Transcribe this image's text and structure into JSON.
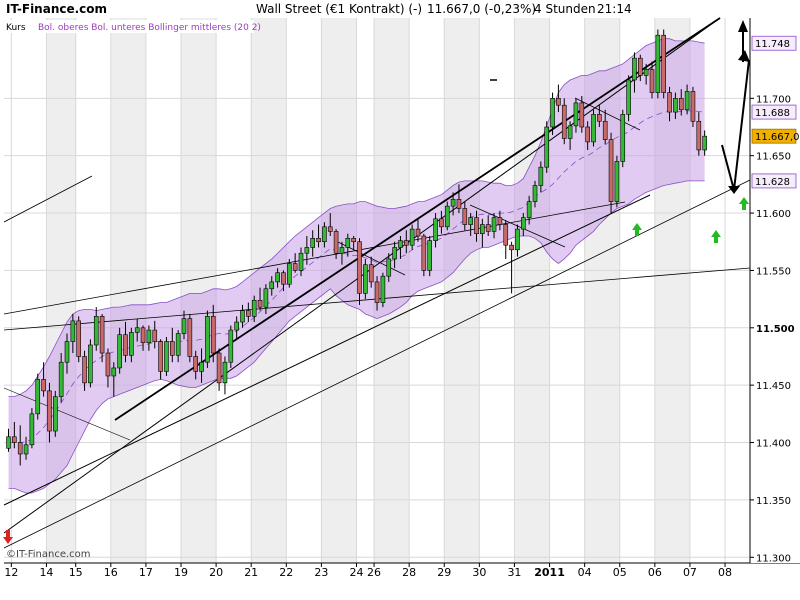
{
  "header": {
    "brand": "IT-Finance.com",
    "title": "Wall Street (€1 Kontrakt) (-)",
    "quote": "11.667,0 (-0,23%)",
    "interval": "4 Stunden",
    "time": "21:14"
  },
  "legend": {
    "kurs": "Kurs",
    "bollinger": "Bol. oberes Bol. unteres Bollinger mittleres (20 2)"
  },
  "watermark": "©IT-Finance.com",
  "colors": {
    "up": "#35b835",
    "down": "#c86a6a",
    "band": "#c9a0e8",
    "band_edge": "#8a4fc8",
    "grid": "#d8d8d8",
    "alt_col": "#eeeeee",
    "arrow_up": "#22bb22",
    "arrow_down": "#dd2222",
    "last_bg": "#f0b000"
  },
  "chart_data": {
    "type": "candlestick",
    "title": "Wall Street (€1 Kontrakt) (-)",
    "y_axis": {
      "ylim": [
        11295,
        11770
      ],
      "ticks": [
        {
          "v": 11300,
          "label": "11.300",
          "bold": false
        },
        {
          "v": 11350,
          "label": "11.350",
          "bold": false
        },
        {
          "v": 11400,
          "label": "11.400",
          "bold": false
        },
        {
          "v": 11450,
          "label": "11.450",
          "bold": false
        },
        {
          "v": 11500,
          "label": "11.500",
          "bold": true
        },
        {
          "v": 11550,
          "label": "11.550",
          "bold": false
        },
        {
          "v": 11600,
          "label": "11.600",
          "bold": false
        },
        {
          "v": 11650,
          "label": "11.650",
          "bold": false
        },
        {
          "v": 11700,
          "label": "11.700",
          "bold": false
        }
      ]
    },
    "x_axis": {
      "bars": 120,
      "labels": [
        {
          "i": 1,
          "label": "12",
          "bold": false
        },
        {
          "i": 7,
          "label": "14",
          "bold": false
        },
        {
          "i": 12,
          "label": "15",
          "bold": false
        },
        {
          "i": 18,
          "label": "16",
          "bold": false
        },
        {
          "i": 24,
          "label": "17",
          "bold": false
        },
        {
          "i": 30,
          "label": "19",
          "bold": false
        },
        {
          "i": 36,
          "label": "20",
          "bold": false
        },
        {
          "i": 42,
          "label": "21",
          "bold": false
        },
        {
          "i": 48,
          "label": "22",
          "bold": false
        },
        {
          "i": 54,
          "label": "23",
          "bold": false
        },
        {
          "i": 60,
          "label": "24",
          "bold": false
        },
        {
          "i": 63,
          "label": "26",
          "bold": false
        },
        {
          "i": 69,
          "label": "28",
          "bold": false
        },
        {
          "i": 75,
          "label": "29",
          "bold": false
        },
        {
          "i": 81,
          "label": "30",
          "bold": false
        },
        {
          "i": 87,
          "label": "31",
          "bold": false
        },
        {
          "i": 93,
          "label": "2011",
          "bold": true
        },
        {
          "i": 99,
          "label": "04",
          "bold": false
        },
        {
          "i": 105,
          "label": "05",
          "bold": false
        },
        {
          "i": 111,
          "label": "06",
          "bold": false
        },
        {
          "i": 117,
          "label": "07",
          "bold": false
        },
        {
          "i": 123,
          "label": "08",
          "bold": false
        }
      ]
    },
    "price_labels": [
      {
        "v": 11748,
        "label": "11.748",
        "style": "band"
      },
      {
        "v": 11688,
        "label": "11.688",
        "style": "band"
      },
      {
        "v": 11667,
        "label": "11.667,0",
        "style": "last"
      },
      {
        "v": 11628,
        "label": "11.628",
        "style": "band"
      }
    ],
    "ohlc": [
      [
        11395,
        11412,
        11392,
        11405
      ],
      [
        11405,
        11418,
        11395,
        11400
      ],
      [
        11400,
        11415,
        11380,
        11390
      ],
      [
        11390,
        11405,
        11385,
        11398
      ],
      [
        11398,
        11430,
        11395,
        11425
      ],
      [
        11425,
        11460,
        11420,
        11455
      ],
      [
        11455,
        11470,
        11440,
        11445
      ],
      [
        11445,
        11452,
        11400,
        11410
      ],
      [
        11410,
        11445,
        11405,
        11440
      ],
      [
        11440,
        11478,
        11435,
        11470
      ],
      [
        11470,
        11495,
        11460,
        11488
      ],
      [
        11488,
        11512,
        11478,
        11506
      ],
      [
        11506,
        11510,
        11470,
        11475
      ],
      [
        11475,
        11480,
        11445,
        11452
      ],
      [
        11452,
        11490,
        11448,
        11485
      ],
      [
        11485,
        11518,
        11480,
        11510
      ],
      [
        11510,
        11512,
        11470,
        11478
      ],
      [
        11478,
        11482,
        11448,
        11458
      ],
      [
        11458,
        11470,
        11440,
        11465
      ],
      [
        11465,
        11500,
        11460,
        11494
      ],
      [
        11494,
        11505,
        11470,
        11476
      ],
      [
        11476,
        11500,
        11470,
        11496
      ],
      [
        11496,
        11508,
        11488,
        11500
      ],
      [
        11500,
        11502,
        11480,
        11487
      ],
      [
        11487,
        11502,
        11480,
        11498
      ],
      [
        11498,
        11506,
        11482,
        11488
      ],
      [
        11488,
        11490,
        11455,
        11462
      ],
      [
        11462,
        11492,
        11458,
        11488
      ],
      [
        11488,
        11500,
        11470,
        11476
      ],
      [
        11476,
        11498,
        11470,
        11495
      ],
      [
        11495,
        11515,
        11490,
        11508
      ],
      [
        11508,
        11512,
        11470,
        11475
      ],
      [
        11475,
        11480,
        11455,
        11462
      ],
      [
        11462,
        11482,
        11452,
        11470
      ],
      [
        11470,
        11515,
        11465,
        11510
      ],
      [
        11510,
        11520,
        11470,
        11478
      ],
      [
        11478,
        11482,
        11445,
        11452
      ],
      [
        11452,
        11475,
        11442,
        11470
      ],
      [
        11470,
        11502,
        11465,
        11498
      ],
      [
        11498,
        11510,
        11490,
        11505
      ],
      [
        11505,
        11520,
        11500,
        11515
      ],
      [
        11515,
        11522,
        11505,
        11510
      ],
      [
        11510,
        11528,
        11505,
        11524
      ],
      [
        11524,
        11535,
        11515,
        11518
      ],
      [
        11518,
        11538,
        11512,
        11534
      ],
      [
        11534,
        11545,
        11528,
        11540
      ],
      [
        11540,
        11552,
        11535,
        11548
      ],
      [
        11548,
        11550,
        11532,
        11538
      ],
      [
        11538,
        11560,
        11535,
        11556
      ],
      [
        11556,
        11565,
        11548,
        11550
      ],
      [
        11550,
        11570,
        11545,
        11565
      ],
      [
        11565,
        11580,
        11555,
        11570
      ],
      [
        11570,
        11585,
        11562,
        11578
      ],
      [
        11578,
        11590,
        11570,
        11575
      ],
      [
        11575,
        11592,
        11570,
        11588
      ],
      [
        11588,
        11600,
        11580,
        11584
      ],
      [
        11584,
        11586,
        11560,
        11565
      ],
      [
        11565,
        11575,
        11555,
        11570
      ],
      [
        11570,
        11582,
        11562,
        11578
      ],
      [
        11578,
        11580,
        11568,
        11575
      ],
      [
        11575,
        11578,
        11520,
        11530
      ],
      [
        11530,
        11560,
        11525,
        11555
      ],
      [
        11555,
        11562,
        11535,
        11540
      ],
      [
        11540,
        11545,
        11515,
        11522
      ],
      [
        11522,
        11548,
        11518,
        11545
      ],
      [
        11545,
        11565,
        11540,
        11560
      ],
      [
        11560,
        11575,
        11552,
        11570
      ],
      [
        11570,
        11580,
        11560,
        11576
      ],
      [
        11576,
        11585,
        11565,
        11572
      ],
      [
        11572,
        11590,
        11568,
        11586
      ],
      [
        11586,
        11595,
        11575,
        11580
      ],
      [
        11580,
        11582,
        11545,
        11550
      ],
      [
        11550,
        11580,
        11545,
        11576
      ],
      [
        11576,
        11600,
        11570,
        11595
      ],
      [
        11595,
        11602,
        11582,
        11588
      ],
      [
        11588,
        11610,
        11585,
        11606
      ],
      [
        11606,
        11618,
        11598,
        11612
      ],
      [
        11612,
        11625,
        11600,
        11604
      ],
      [
        11604,
        11610,
        11585,
        11590
      ],
      [
        11590,
        11600,
        11580,
        11596
      ],
      [
        11596,
        11602,
        11575,
        11582
      ],
      [
        11582,
        11595,
        11570,
        11590
      ],
      [
        11590,
        11598,
        11580,
        11584
      ],
      [
        11584,
        11600,
        11578,
        11596
      ],
      [
        11596,
        11602,
        11585,
        11590
      ],
      [
        11590,
        11594,
        11560,
        11572
      ],
      [
        11572,
        11575,
        11530,
        11568
      ],
      [
        11568,
        11590,
        11562,
        11586
      ],
      [
        11586,
        11600,
        11580,
        11596
      ],
      [
        11596,
        11615,
        11590,
        11610
      ],
      [
        11610,
        11628,
        11605,
        11624
      ],
      [
        11624,
        11645,
        11618,
        11640
      ],
      [
        11640,
        11680,
        11635,
        11675
      ],
      [
        11675,
        11705,
        11668,
        11700
      ],
      [
        11700,
        11712,
        11688,
        11694
      ],
      [
        11694,
        11700,
        11660,
        11665
      ],
      [
        11665,
        11680,
        11655,
        11676
      ],
      [
        11676,
        11700,
        11670,
        11696
      ],
      [
        11696,
        11702,
        11670,
        11675
      ],
      [
        11675,
        11680,
        11655,
        11662
      ],
      [
        11662,
        11690,
        11658,
        11686
      ],
      [
        11686,
        11694,
        11675,
        11680
      ],
      [
        11680,
        11690,
        11660,
        11664
      ],
      [
        11664,
        11670,
        11600,
        11610
      ],
      [
        11610,
        11650,
        11605,
        11645
      ],
      [
        11645,
        11690,
        11640,
        11686
      ],
      [
        11686,
        11720,
        11680,
        11716
      ],
      [
        11716,
        11740,
        11705,
        11735
      ],
      [
        11735,
        11738,
        11715,
        11720
      ],
      [
        11720,
        11730,
        11712,
        11725
      ],
      [
        11725,
        11732,
        11700,
        11705
      ],
      [
        11705,
        11760,
        11700,
        11755
      ],
      [
        11755,
        11760,
        11700,
        11705
      ],
      [
        11705,
        11710,
        11680,
        11688
      ],
      [
        11688,
        11705,
        11682,
        11700
      ],
      [
        11700,
        11708,
        11685,
        11690
      ],
      [
        11690,
        11712,
        11686,
        11706
      ],
      [
        11706,
        11710,
        11675,
        11680
      ],
      [
        11680,
        11688,
        11650,
        11655
      ],
      [
        11655,
        11672,
        11650,
        11667
      ]
    ],
    "bollinger": {
      "upper": [
        11440,
        11440,
        11442,
        11445,
        11450,
        11458,
        11466,
        11475,
        11485,
        11495,
        11505,
        11512,
        11515,
        11516,
        11516,
        11515,
        11516,
        11517,
        11518,
        11518,
        11519,
        11520,
        11520,
        11520,
        11520,
        11521,
        11522,
        11522,
        11524,
        11526,
        11528,
        11530,
        11530,
        11530,
        11532,
        11534,
        11534,
        11533,
        11534,
        11536,
        11540,
        11544,
        11548,
        11552,
        11556,
        11560,
        11565,
        11570,
        11575,
        11580,
        11584,
        11588,
        11592,
        11596,
        11600,
        11604,
        11606,
        11607,
        11608,
        11608,
        11610,
        11610,
        11608,
        11606,
        11605,
        11604,
        11604,
        11605,
        11606,
        11608,
        11610,
        11610,
        11612,
        11614,
        11616,
        11620,
        11624,
        11627,
        11628,
        11628,
        11628,
        11628,
        11627,
        11626,
        11626,
        11624,
        11624,
        11626,
        11630,
        11640,
        11650,
        11662,
        11676,
        11690,
        11705,
        11712,
        11716,
        11718,
        11720,
        11720,
        11722,
        11724,
        11724,
        11726,
        11728,
        11730,
        11734,
        11738,
        11742,
        11746,
        11748,
        11750,
        11752,
        11752,
        11750,
        11750,
        11750,
        11750,
        11749,
        11748
      ],
      "lower": [
        11360,
        11360,
        11358,
        11356,
        11356,
        11358,
        11360,
        11364,
        11368,
        11374,
        11380,
        11390,
        11400,
        11410,
        11420,
        11428,
        11434,
        11438,
        11440,
        11442,
        11444,
        11446,
        11448,
        11450,
        11452,
        11454,
        11455,
        11454,
        11452,
        11450,
        11449,
        11448,
        11448,
        11450,
        11452,
        11454,
        11456,
        11456,
        11456,
        11458,
        11462,
        11466,
        11470,
        11476,
        11482,
        11488,
        11494,
        11500,
        11506,
        11510,
        11514,
        11518,
        11522,
        11526,
        11530,
        11534,
        11528,
        11524,
        11520,
        11518,
        11516,
        11512,
        11510,
        11508,
        11510,
        11512,
        11515,
        11518,
        11522,
        11528,
        11532,
        11534,
        11536,
        11538,
        11540,
        11544,
        11548,
        11554,
        11560,
        11565,
        11568,
        11570,
        11570,
        11572,
        11574,
        11576,
        11578,
        11580,
        11580,
        11580,
        11578,
        11574,
        11566,
        11560,
        11556,
        11560,
        11565,
        11572,
        11576,
        11580,
        11584,
        11590,
        11595,
        11600,
        11604,
        11606,
        11608,
        11612,
        11615,
        11618,
        11620,
        11622,
        11624,
        11625,
        11626,
        11627,
        11628,
        11628,
        11628,
        11628
      ]
    }
  }
}
